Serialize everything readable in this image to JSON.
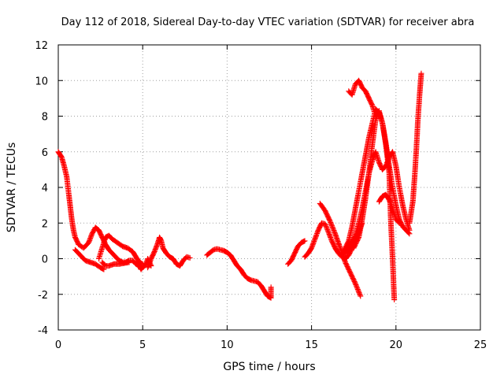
{
  "chart_data": {
    "type": "scatter",
    "title": "Day 112 of 2018, Sidereal Day-to-day VTEC variation (SDTVAR) for receiver abra",
    "xlabel": "GPS time / hours",
    "ylabel": "SDTVAR / TECUs",
    "xlim": [
      0,
      25
    ],
    "ylim": [
      -4,
      12
    ],
    "xticks": [
      "0",
      "5",
      "10",
      "15",
      "20",
      "25"
    ],
    "yticks": [
      "-4",
      "-2",
      "0",
      "2",
      "4",
      "6",
      "8",
      "10",
      "12"
    ],
    "grid": true,
    "marker": "+",
    "color": "#ff0000",
    "series": [
      {
        "name": "seg1",
        "points": [
          [
            0.0,
            6.0
          ],
          [
            0.2,
            5.7
          ],
          [
            0.35,
            5.2
          ],
          [
            0.5,
            4.6
          ],
          [
            0.6,
            3.8
          ],
          [
            0.7,
            3.0
          ],
          [
            0.8,
            2.2
          ],
          [
            0.9,
            1.6
          ],
          [
            1.0,
            1.2
          ],
          [
            1.2,
            0.8
          ],
          [
            1.5,
            0.6
          ],
          [
            1.8,
            0.9
          ],
          [
            2.0,
            1.4
          ],
          [
            2.2,
            1.75
          ],
          [
            2.4,
            1.6
          ],
          [
            2.6,
            1.2
          ],
          [
            2.8,
            0.8
          ],
          [
            3.0,
            0.5
          ],
          [
            3.2,
            0.3
          ],
          [
            3.4,
            0.1
          ],
          [
            3.6,
            -0.1
          ],
          [
            3.8,
            -0.2
          ],
          [
            4.0,
            -0.2
          ],
          [
            4.2,
            -0.1
          ],
          [
            4.4,
            -0.1
          ],
          [
            4.6,
            -0.3
          ],
          [
            4.8,
            -0.4
          ],
          [
            4.9,
            -0.6
          ],
          [
            5.0,
            -0.5
          ],
          [
            5.2,
            -0.3
          ],
          [
            5.3,
            0.0
          ],
          [
            5.5,
            -0.4
          ]
        ]
      },
      {
        "name": "seg2",
        "points": [
          [
            1.0,
            0.5
          ],
          [
            1.3,
            0.2
          ],
          [
            1.6,
            -0.1
          ],
          [
            1.9,
            -0.2
          ],
          [
            2.2,
            -0.3
          ],
          [
            2.5,
            -0.5
          ],
          [
            2.7,
            -0.6
          ]
        ]
      },
      {
        "name": "seg3",
        "points": [
          [
            2.4,
            0.0
          ],
          [
            2.6,
            0.6
          ],
          [
            2.8,
            1.2
          ],
          [
            3.0,
            1.3
          ],
          [
            3.2,
            1.1
          ],
          [
            3.5,
            0.9
          ],
          [
            3.8,
            0.7
          ],
          [
            4.1,
            0.6
          ],
          [
            4.4,
            0.4
          ],
          [
            4.6,
            0.1
          ],
          [
            4.8,
            -0.2
          ],
          [
            5.0,
            -0.3
          ]
        ]
      },
      {
        "name": "seg4",
        "points": [
          [
            2.6,
            -0.2
          ],
          [
            2.8,
            -0.4
          ],
          [
            3.0,
            -0.4
          ],
          [
            3.3,
            -0.3
          ],
          [
            3.6,
            -0.3
          ],
          [
            3.9,
            -0.25
          ],
          [
            4.2,
            -0.2
          ]
        ]
      },
      {
        "name": "seg5",
        "points": [
          [
            5.3,
            -0.5
          ],
          [
            5.5,
            0.0
          ],
          [
            5.7,
            0.4
          ],
          [
            5.9,
            0.9
          ],
          [
            6.0,
            1.2
          ],
          [
            6.1,
            1.0
          ],
          [
            6.2,
            0.6
          ],
          [
            6.4,
            0.3
          ],
          [
            6.6,
            0.1
          ],
          [
            6.8,
            0.0
          ],
          [
            7.0,
            -0.3
          ],
          [
            7.2,
            -0.4
          ],
          [
            7.4,
            -0.1
          ],
          [
            7.6,
            0.1
          ],
          [
            7.8,
            0.05
          ]
        ]
      },
      {
        "name": "seg6",
        "points": [
          [
            8.8,
            0.2
          ],
          [
            9.0,
            0.35
          ],
          [
            9.2,
            0.5
          ],
          [
            9.4,
            0.55
          ],
          [
            9.6,
            0.5
          ],
          [
            9.8,
            0.45
          ],
          [
            10.0,
            0.35
          ],
          [
            10.2,
            0.2
          ],
          [
            10.4,
            -0.1
          ],
          [
            10.6,
            -0.4
          ],
          [
            10.8,
            -0.6
          ],
          [
            11.0,
            -0.9
          ],
          [
            11.2,
            -1.1
          ],
          [
            11.4,
            -1.2
          ],
          [
            11.6,
            -1.25
          ],
          [
            11.8,
            -1.3
          ],
          [
            12.0,
            -1.5
          ],
          [
            12.2,
            -1.8
          ],
          [
            12.4,
            -2.1
          ],
          [
            12.6,
            -2.2
          ],
          [
            12.6,
            -1.6
          ]
        ]
      },
      {
        "name": "seg7",
        "points": [
          [
            13.6,
            -0.3
          ],
          [
            13.8,
            -0.1
          ],
          [
            14.0,
            0.3
          ],
          [
            14.2,
            0.7
          ],
          [
            14.4,
            0.9
          ],
          [
            14.6,
            1.0
          ]
        ]
      },
      {
        "name": "seg8",
        "points": [
          [
            14.6,
            0.1
          ],
          [
            14.8,
            0.3
          ],
          [
            15.0,
            0.6
          ],
          [
            15.2,
            1.1
          ],
          [
            15.4,
            1.6
          ],
          [
            15.6,
            2.0
          ],
          [
            15.8,
            1.95
          ],
          [
            16.0,
            1.5
          ],
          [
            16.2,
            1.0
          ],
          [
            16.4,
            0.6
          ],
          [
            16.6,
            0.3
          ],
          [
            16.8,
            0.1
          ],
          [
            17.0,
            0.0
          ],
          [
            17.2,
            0.2
          ],
          [
            17.4,
            0.6
          ],
          [
            17.6,
            1.0
          ],
          [
            17.8,
            1.5
          ],
          [
            18.0,
            2.0
          ]
        ]
      },
      {
        "name": "seg9",
        "points": [
          [
            15.5,
            3.1
          ],
          [
            15.8,
            2.7
          ],
          [
            16.1,
            2.1
          ],
          [
            16.4,
            1.4
          ],
          [
            16.7,
            0.6
          ],
          [
            17.0,
            -0.2
          ],
          [
            17.3,
            -0.8
          ],
          [
            17.6,
            -1.4
          ],
          [
            17.9,
            -2.1
          ]
        ]
      },
      {
        "name": "seg10",
        "points": [
          [
            16.8,
            0.2
          ],
          [
            17.0,
            0.6
          ],
          [
            17.2,
            1.0
          ],
          [
            17.4,
            1.8
          ],
          [
            17.6,
            2.8
          ],
          [
            17.8,
            3.8
          ],
          [
            18.0,
            4.8
          ],
          [
            18.2,
            5.8
          ],
          [
            18.4,
            6.8
          ],
          [
            18.6,
            7.6
          ],
          [
            18.8,
            8.4
          ],
          [
            19.0,
            8.2
          ],
          [
            19.2,
            7.6
          ],
          [
            19.4,
            6.4
          ],
          [
            19.6,
            4.8
          ],
          [
            19.7,
            2.0
          ],
          [
            19.8,
            0.0
          ],
          [
            19.9,
            -2.3
          ]
        ]
      },
      {
        "name": "seg11",
        "points": [
          [
            17.0,
            0.3
          ],
          [
            17.3,
            0.8
          ],
          [
            17.6,
            1.3
          ],
          [
            17.8,
            2.0
          ],
          [
            18.0,
            2.8
          ],
          [
            18.2,
            3.8
          ],
          [
            18.4,
            4.8
          ],
          [
            18.6,
            5.5
          ],
          [
            18.8,
            6.0
          ],
          [
            19.0,
            5.4
          ],
          [
            19.2,
            5.0
          ],
          [
            19.4,
            5.2
          ],
          [
            19.6,
            5.7
          ],
          [
            19.8,
            6.0
          ],
          [
            20.0,
            5.2
          ],
          [
            20.2,
            4.0
          ],
          [
            20.4,
            3.0
          ],
          [
            20.6,
            2.2
          ],
          [
            20.8,
            1.6
          ]
        ]
      },
      {
        "name": "seg12",
        "points": [
          [
            17.5,
            0.6
          ],
          [
            17.8,
            1.2
          ],
          [
            18.0,
            2.2
          ],
          [
            18.2,
            3.4
          ],
          [
            18.4,
            4.8
          ],
          [
            18.6,
            6.4
          ],
          [
            18.8,
            7.8
          ],
          [
            19.0,
            8.3
          ],
          [
            19.2,
            7.6
          ],
          [
            19.4,
            6.5
          ],
          [
            19.6,
            5.2
          ],
          [
            19.8,
            4.0
          ],
          [
            20.0,
            3.0
          ],
          [
            20.2,
            2.2
          ],
          [
            20.4,
            1.8
          ],
          [
            20.6,
            1.6
          ],
          [
            20.8,
            1.4
          ]
        ]
      },
      {
        "name": "seg13",
        "points": [
          [
            17.2,
            9.4
          ],
          [
            17.4,
            9.2
          ],
          [
            17.6,
            9.8
          ],
          [
            17.8,
            10.0
          ],
          [
            18.0,
            9.6
          ],
          [
            18.2,
            9.4
          ],
          [
            18.4,
            9.0
          ],
          [
            18.6,
            8.6
          ],
          [
            18.8,
            8.0
          ]
        ]
      },
      {
        "name": "seg14",
        "points": [
          [
            19.0,
            3.2
          ],
          [
            19.2,
            3.5
          ],
          [
            19.4,
            3.6
          ],
          [
            19.6,
            3.3
          ],
          [
            19.8,
            2.8
          ],
          [
            20.0,
            2.2
          ],
          [
            20.2,
            2.0
          ]
        ]
      },
      {
        "name": "seg15",
        "points": [
          [
            20.8,
            2.0
          ],
          [
            21.0,
            3.2
          ],
          [
            21.1,
            4.5
          ],
          [
            21.2,
            6.0
          ],
          [
            21.3,
            7.8
          ],
          [
            21.4,
            9.2
          ],
          [
            21.5,
            10.4
          ]
        ]
      }
    ]
  }
}
